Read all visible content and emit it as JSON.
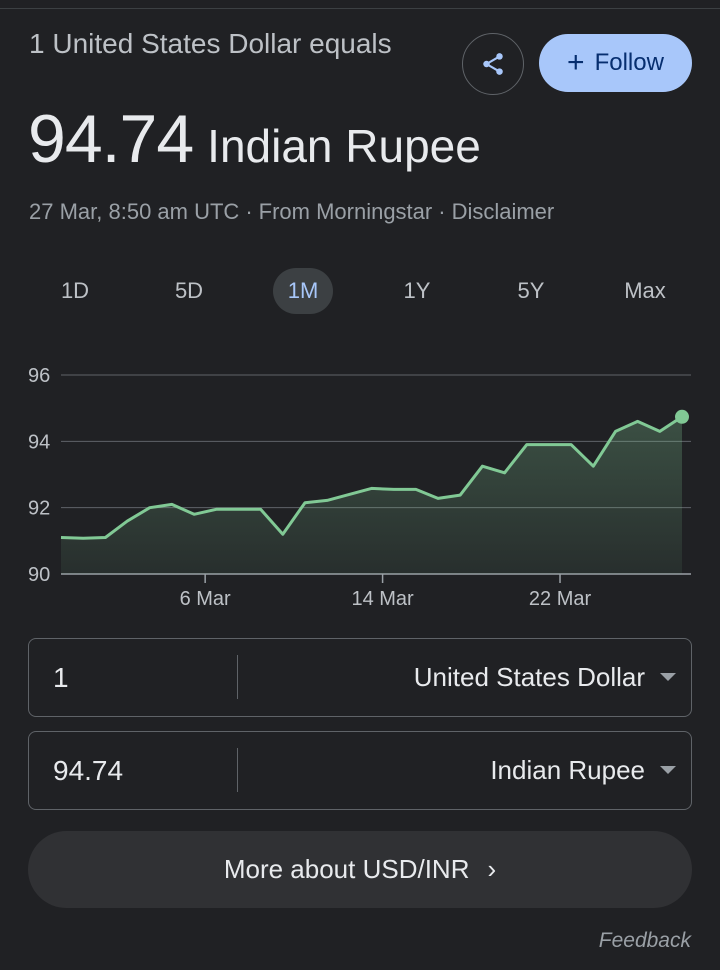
{
  "header": {
    "equals_text": "1 United States Dollar equals",
    "amount": "94.74",
    "currency": "Indian Rupee",
    "timestamp": "27 Mar, 8:50 am UTC",
    "source": "From Morningstar",
    "disclaimer": "Disclaimer"
  },
  "actions": {
    "share_icon": "share-icon",
    "follow_label": "Follow"
  },
  "ranges": [
    {
      "label": "1D",
      "active": false
    },
    {
      "label": "5D",
      "active": false
    },
    {
      "label": "1M",
      "active": true
    },
    {
      "label": "1Y",
      "active": false
    },
    {
      "label": "5Y",
      "active": false
    },
    {
      "label": "Max",
      "active": false
    }
  ],
  "colors": {
    "line": "#81c995",
    "accent": "#a8c7fa",
    "background": "#202124"
  },
  "chart_data": {
    "type": "area",
    "ylim": [
      90,
      96
    ],
    "yticks": [
      90,
      92,
      94,
      96
    ],
    "xticks": [
      {
        "label": "6 Mar",
        "day": 6
      },
      {
        "label": "14 Mar",
        "day": 14
      },
      {
        "label": "22 Mar",
        "day": 22
      }
    ],
    "series": [
      {
        "x": [
          -0.5,
          0.5,
          1.5,
          2.5,
          3.5,
          4.5,
          5.5,
          6.5,
          7.5,
          8.5,
          9.5,
          10.5,
          11.5,
          12.5,
          13.5,
          14.5,
          15.5,
          16.5,
          17.5,
          18.5,
          19.5,
          20.5,
          21.5,
          22.5,
          23.5,
          24.5,
          25.5,
          26.5,
          27.5
        ],
        "values": [
          91.1,
          91.08,
          91.1,
          91.6,
          92.0,
          92.1,
          91.8,
          91.95,
          91.95,
          91.95,
          91.2,
          92.15,
          92.22,
          92.4,
          92.58,
          92.55,
          92.55,
          92.28,
          92.38,
          93.25,
          93.05,
          93.9,
          93.9,
          93.9,
          93.25,
          94.3,
          94.6,
          94.3,
          94.74
        ]
      }
    ]
  },
  "converter": {
    "from_value": "1",
    "from_currency": "United States Dollar",
    "to_value": "94.74",
    "to_currency": "Indian Rupee"
  },
  "more_label": "More about USD/INR",
  "feedback_label": "Feedback"
}
